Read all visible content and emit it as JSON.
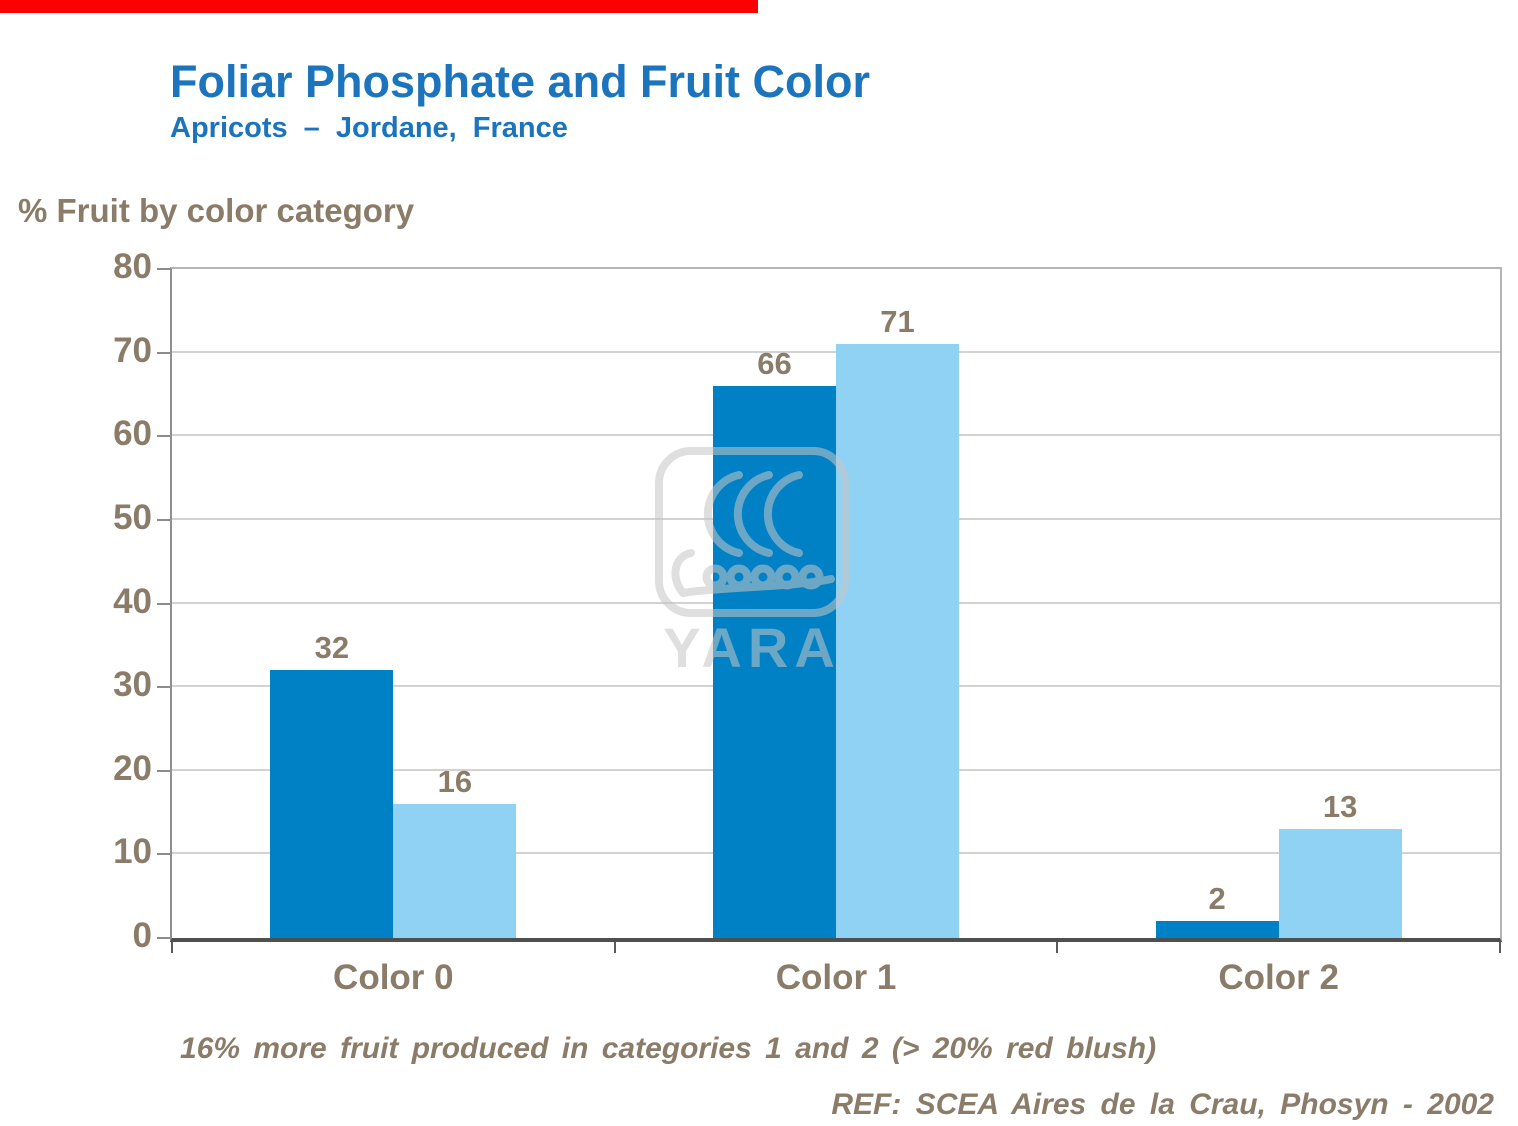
{
  "page": {
    "accent_bar_color": "#FF0000",
    "title": "Foliar Phosphate and Fruit Color",
    "subtitle": "Apricots – Jordane, France",
    "title_color": "#1B74BC",
    "text_color": "#8A7C68",
    "footnote": "16% more fruit produced in categories 1 and 2 (> 20% red blush)",
    "reference": "REF: SCEA Aires de la Crau, Phosyn - 2002"
  },
  "chart_data": {
    "type": "bar",
    "title": "Foliar Phosphate and Fruit Color",
    "subtitle": "Apricots – Jordane, France",
    "ylabel": "% Fruit by color category",
    "xlabel": "",
    "categories": [
      "Color 0",
      "Color 1",
      "Color 2"
    ],
    "series": [
      {
        "name": "series-1-dark-blue",
        "color": "#0081C6",
        "values": [
          32,
          66,
          2
        ]
      },
      {
        "name": "series-2-light-blue",
        "color": "#90D2F4",
        "values": [
          16,
          71,
          13
        ]
      }
    ],
    "ylim": [
      0,
      80
    ],
    "yticks": [
      0,
      10,
      20,
      30,
      40,
      50,
      60,
      70,
      80
    ],
    "grid": true,
    "legend_position": "none",
    "data_labels": true
  },
  "watermark": {
    "label": "YARA"
  }
}
